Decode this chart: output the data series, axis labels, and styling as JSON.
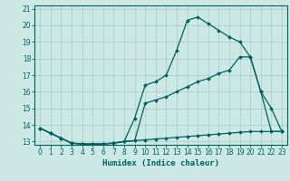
{
  "xlabel": "Humidex (Indice chaleur)",
  "bg_color": "#cce8e4",
  "grid_color": "#aacfcb",
  "line_color": "#005f5f",
  "xlim": [
    -0.5,
    23.5
  ],
  "ylim": [
    12.8,
    21.2
  ],
  "xticks": [
    0,
    1,
    2,
    3,
    4,
    5,
    6,
    7,
    8,
    9,
    10,
    11,
    12,
    13,
    14,
    15,
    16,
    17,
    18,
    19,
    20,
    21,
    22,
    23
  ],
  "yticks": [
    13,
    14,
    15,
    16,
    17,
    18,
    19,
    20,
    21
  ],
  "series": [
    {
      "x": [
        0,
        1,
        2,
        3,
        4,
        5,
        6,
        7,
        8,
        9,
        10,
        11,
        12,
        13,
        14,
        15,
        16,
        17,
        18,
        19,
        20,
        21,
        22,
        23
      ],
      "y": [
        13.8,
        13.5,
        13.2,
        12.9,
        12.85,
        12.85,
        12.85,
        12.9,
        13.0,
        14.4,
        16.4,
        16.6,
        17.0,
        18.5,
        20.3,
        20.5,
        20.1,
        19.7,
        19.3,
        19.0,
        18.1,
        16.0,
        13.6,
        13.6
      ]
    },
    {
      "x": [
        0,
        1,
        2,
        3,
        4,
        5,
        6,
        7,
        8,
        9,
        10,
        11,
        12,
        13,
        14,
        15,
        16,
        17,
        18,
        19,
        20,
        21,
        22,
        23
      ],
      "y": [
        13.8,
        13.5,
        13.2,
        12.9,
        12.85,
        12.85,
        12.85,
        12.9,
        13.0,
        13.05,
        15.3,
        15.5,
        15.7,
        16.0,
        16.3,
        16.6,
        16.8,
        17.1,
        17.3,
        18.1,
        18.1,
        16.0,
        15.0,
        13.6
      ]
    },
    {
      "x": [
        0,
        1,
        2,
        3,
        4,
        5,
        6,
        7,
        8,
        9,
        10,
        11,
        12,
        13,
        14,
        15,
        16,
        17,
        18,
        19,
        20,
        21,
        22,
        23
      ],
      "y": [
        13.8,
        13.5,
        13.2,
        12.9,
        12.85,
        12.85,
        12.85,
        12.9,
        13.0,
        13.05,
        13.1,
        13.15,
        13.2,
        13.25,
        13.3,
        13.35,
        13.4,
        13.45,
        13.5,
        13.55,
        13.6,
        13.6,
        13.6,
        13.6
      ]
    }
  ]
}
